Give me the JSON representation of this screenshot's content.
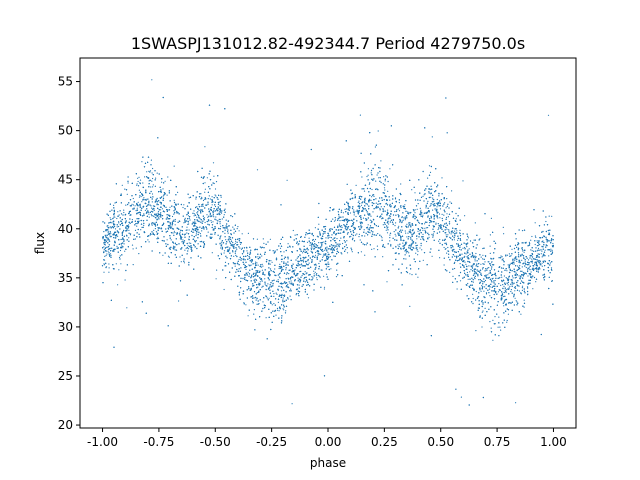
{
  "chart_data": {
    "type": "scatter",
    "title": "1SWASPJ131012.82-492344.7 Period 4279750.0s",
    "xlabel": "phase",
    "ylabel": "flux",
    "xlim": [
      -1.1,
      1.1
    ],
    "ylim": [
      19.7,
      57.4
    ],
    "xticks": [
      "-1.00",
      "-0.75",
      "-0.50",
      "-0.25",
      "0.00",
      "0.25",
      "0.50",
      "0.75",
      "1.00"
    ],
    "yticks": [
      "20",
      "25",
      "30",
      "35",
      "40",
      "45",
      "50",
      "55"
    ],
    "grid": false,
    "legend": "none",
    "marker_color": "#1f77b4",
    "series": [
      {
        "profile_phase": [
          0.0,
          0.05,
          0.1,
          0.15,
          0.2,
          0.25,
          0.3,
          0.35,
          0.4,
          0.45,
          0.5,
          0.55,
          0.6,
          0.65,
          0.7,
          0.75,
          0.8,
          0.85,
          0.9,
          0.95,
          1.0
        ],
        "profile_flux_mean": [
          38.0,
          39.5,
          40.5,
          41.5,
          42.5,
          42.0,
          40.5,
          39.5,
          40.0,
          42.0,
          41.5,
          39.0,
          37.0,
          35.5,
          34.5,
          34.0,
          34.5,
          35.5,
          36.5,
          37.5,
          38.0
        ],
        "profile_flux_spread": [
          2.5,
          2.5,
          3.0,
          3.2,
          3.5,
          3.5,
          3.0,
          3.0,
          3.0,
          3.2,
          3.0,
          2.8,
          2.8,
          3.0,
          3.2,
          3.5,
          3.0,
          2.8,
          2.5,
          2.5,
          2.5
        ]
      }
    ]
  }
}
